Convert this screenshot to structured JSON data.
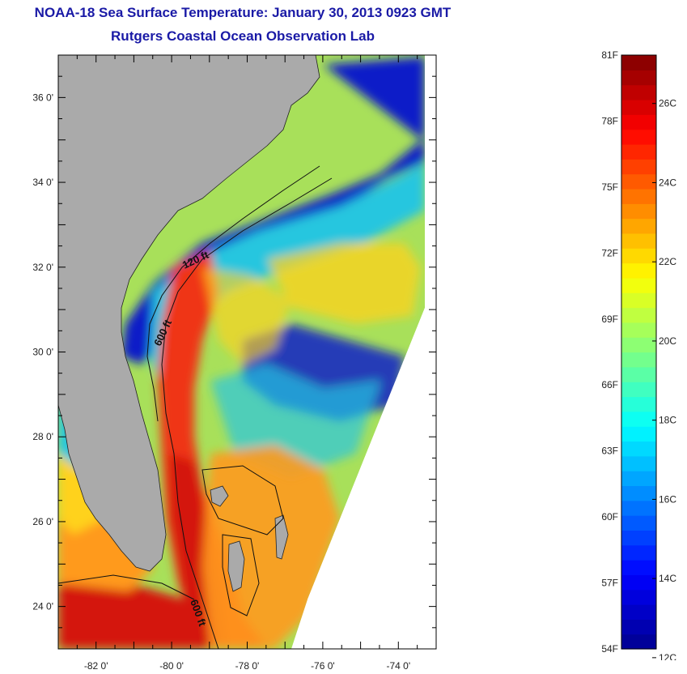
{
  "title": {
    "line1": "NOAA-18 Sea Surface Temperature:  January 30, 2013 0923 GMT",
    "line2": "Rutgers Coastal Ocean Observation Lab"
  },
  "map": {
    "lon_range": [
      -83,
      -73
    ],
    "lat_range": [
      23,
      37
    ],
    "lon_ticks": [
      {
        "value": -82,
        "label": "-82 0'"
      },
      {
        "value": -80,
        "label": "-80 0'"
      },
      {
        "value": -78,
        "label": "-78 0'"
      },
      {
        "value": -76,
        "label": "-76 0'"
      },
      {
        "value": -74,
        "label": "-74 0'"
      }
    ],
    "lat_ticks": [
      {
        "value": 24,
        "label": "24 0'"
      },
      {
        "value": 26,
        "label": "26 0'"
      },
      {
        "value": 28,
        "label": "28 0'"
      },
      {
        "value": 30,
        "label": "30 0'"
      },
      {
        "value": 32,
        "label": "32 0'"
      },
      {
        "value": 34,
        "label": "34 0'"
      },
      {
        "value": 36,
        "label": "36 0'"
      }
    ],
    "contour_labels": {
      "c120": "120 ft",
      "c600a": "600 ft",
      "c600b": "600 ft"
    },
    "colors": {
      "land": "#aaaaaa",
      "no_data": "#ffffff",
      "coastal_cold": "#0a1ec8",
      "shelf_mid": "#27c6df",
      "offshore": "#a8e05a",
      "warm_yellow": "#ffd21e",
      "gulf_stream": "#ef3512",
      "gulf_stream_core": "#d4120c",
      "bahamas_bank": "#ff9a1e"
    }
  },
  "colorbar": {
    "fahrenheit": [
      {
        "value": 81,
        "label": "81F"
      },
      {
        "value": 78,
        "label": "78F"
      },
      {
        "value": 75,
        "label": "75F"
      },
      {
        "value": 72,
        "label": "72F"
      },
      {
        "value": 69,
        "label": "69F"
      },
      {
        "value": 66,
        "label": "66F"
      },
      {
        "value": 63,
        "label": "63F"
      },
      {
        "value": 60,
        "label": "60F"
      },
      {
        "value": 57,
        "label": "57F"
      },
      {
        "value": 54,
        "label": "54F"
      }
    ],
    "celsius": [
      {
        "value": 26,
        "label": "26C"
      },
      {
        "value": 24,
        "label": "24C"
      },
      {
        "value": 22,
        "label": "22C"
      },
      {
        "value": 20,
        "label": "20C"
      },
      {
        "value": 18,
        "label": "18C"
      },
      {
        "value": 16,
        "label": "16C"
      },
      {
        "value": 14,
        "label": "14C"
      },
      {
        "value": 12,
        "label": "12C"
      }
    ],
    "range_f": [
      54,
      81
    ],
    "steps": 40,
    "colormap": [
      "#00008f",
      "#0000ff",
      "#0080ff",
      "#00ffff",
      "#80ff80",
      "#ffff00",
      "#ff8000",
      "#ff0000",
      "#800000"
    ]
  }
}
